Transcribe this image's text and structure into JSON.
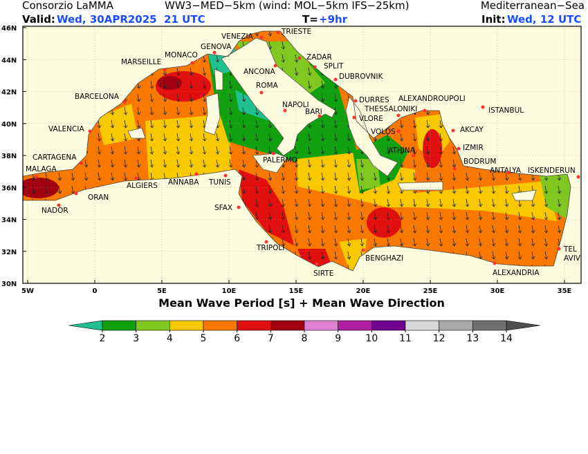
{
  "header": {
    "left": "Consorzio LaMMA",
    "center": "WW3−MED−5km (wind: MOL−5km IFS−25km)",
    "right": "Mediterranean−Sea",
    "valid_label": "Valid:",
    "valid_value": "Wed, 30APR2025  21 UTC",
    "step_label": "T=",
    "step_value": "+9hr",
    "init_label": "Init:",
    "init_value": "Wed, 12 UTC"
  },
  "map": {
    "lon_ticks": [
      {
        "value": -5,
        "label": "5W"
      },
      0,
      {
        "value": 5,
        "label": "5E"
      },
      {
        "value": 10,
        "label": "10E"
      },
      {
        "value": 15,
        "label": "15E"
      },
      {
        "value": 20,
        "label": "20E"
      },
      {
        "value": 25,
        "label": "25E"
      },
      {
        "value": 30,
        "label": "30E"
      },
      {
        "value": 35,
        "label": "35E"
      }
    ],
    "lat_ticks": [
      {
        "value": 30,
        "label": "30N"
      },
      {
        "value": 32,
        "label": "32N"
      },
      {
        "value": 34,
        "label": "34N"
      },
      {
        "value": 36,
        "label": "36N"
      },
      {
        "value": 38,
        "label": "38N"
      },
      {
        "value": 40,
        "label": "40N"
      },
      {
        "value": 42,
        "label": "42N"
      },
      {
        "value": 44,
        "label": "44N"
      },
      {
        "value": 46,
        "label": "46N"
      }
    ],
    "title": "Mean Wave Period [s] + Mean Wave Direction"
  },
  "cities": [
    "VENEZIA",
    "TRIESTE",
    "GENOVA",
    "MONACO",
    "MARSEILLE",
    "ZADAR",
    "SPLIT",
    "ANCONA",
    "DUBROVNIK",
    "ROMA",
    "BARCELONA",
    "DURRES",
    "ALEXANDROUPOLI",
    "NAPOLI",
    "THESSALONIKI",
    "ISTANBUL",
    "BARI",
    "VLORE",
    "VALENCIA",
    "VOLOS",
    "AKCAY",
    "ATHINA",
    "IZMIR",
    "CARTAGENA",
    "PALERMO",
    "BODRUM",
    "MALAGA",
    "ANTALYA",
    "ISKENDERUN",
    "ALGIERS",
    "ANNABA",
    "TUNIS",
    "ORAN",
    "SFAX",
    "NADOR",
    "TRIPOLI",
    "TEL",
    "AVIV",
    "BENGHAZI",
    "ALEXANDRIA",
    "SIRTE"
  ],
  "colorbar": {
    "ticks": [
      2,
      3,
      4,
      5,
      6,
      7,
      8,
      9,
      10,
      11,
      12,
      13,
      14
    ],
    "colors": [
      "#20c090",
      "#10a010",
      "#80c820",
      "#f8c800",
      "#f87800",
      "#e01010",
      "#a00010",
      "#e080d0",
      "#b020a0",
      "#700090",
      "#d8d8d8",
      "#a8a8a8",
      "#707070",
      "#505050"
    ]
  }
}
